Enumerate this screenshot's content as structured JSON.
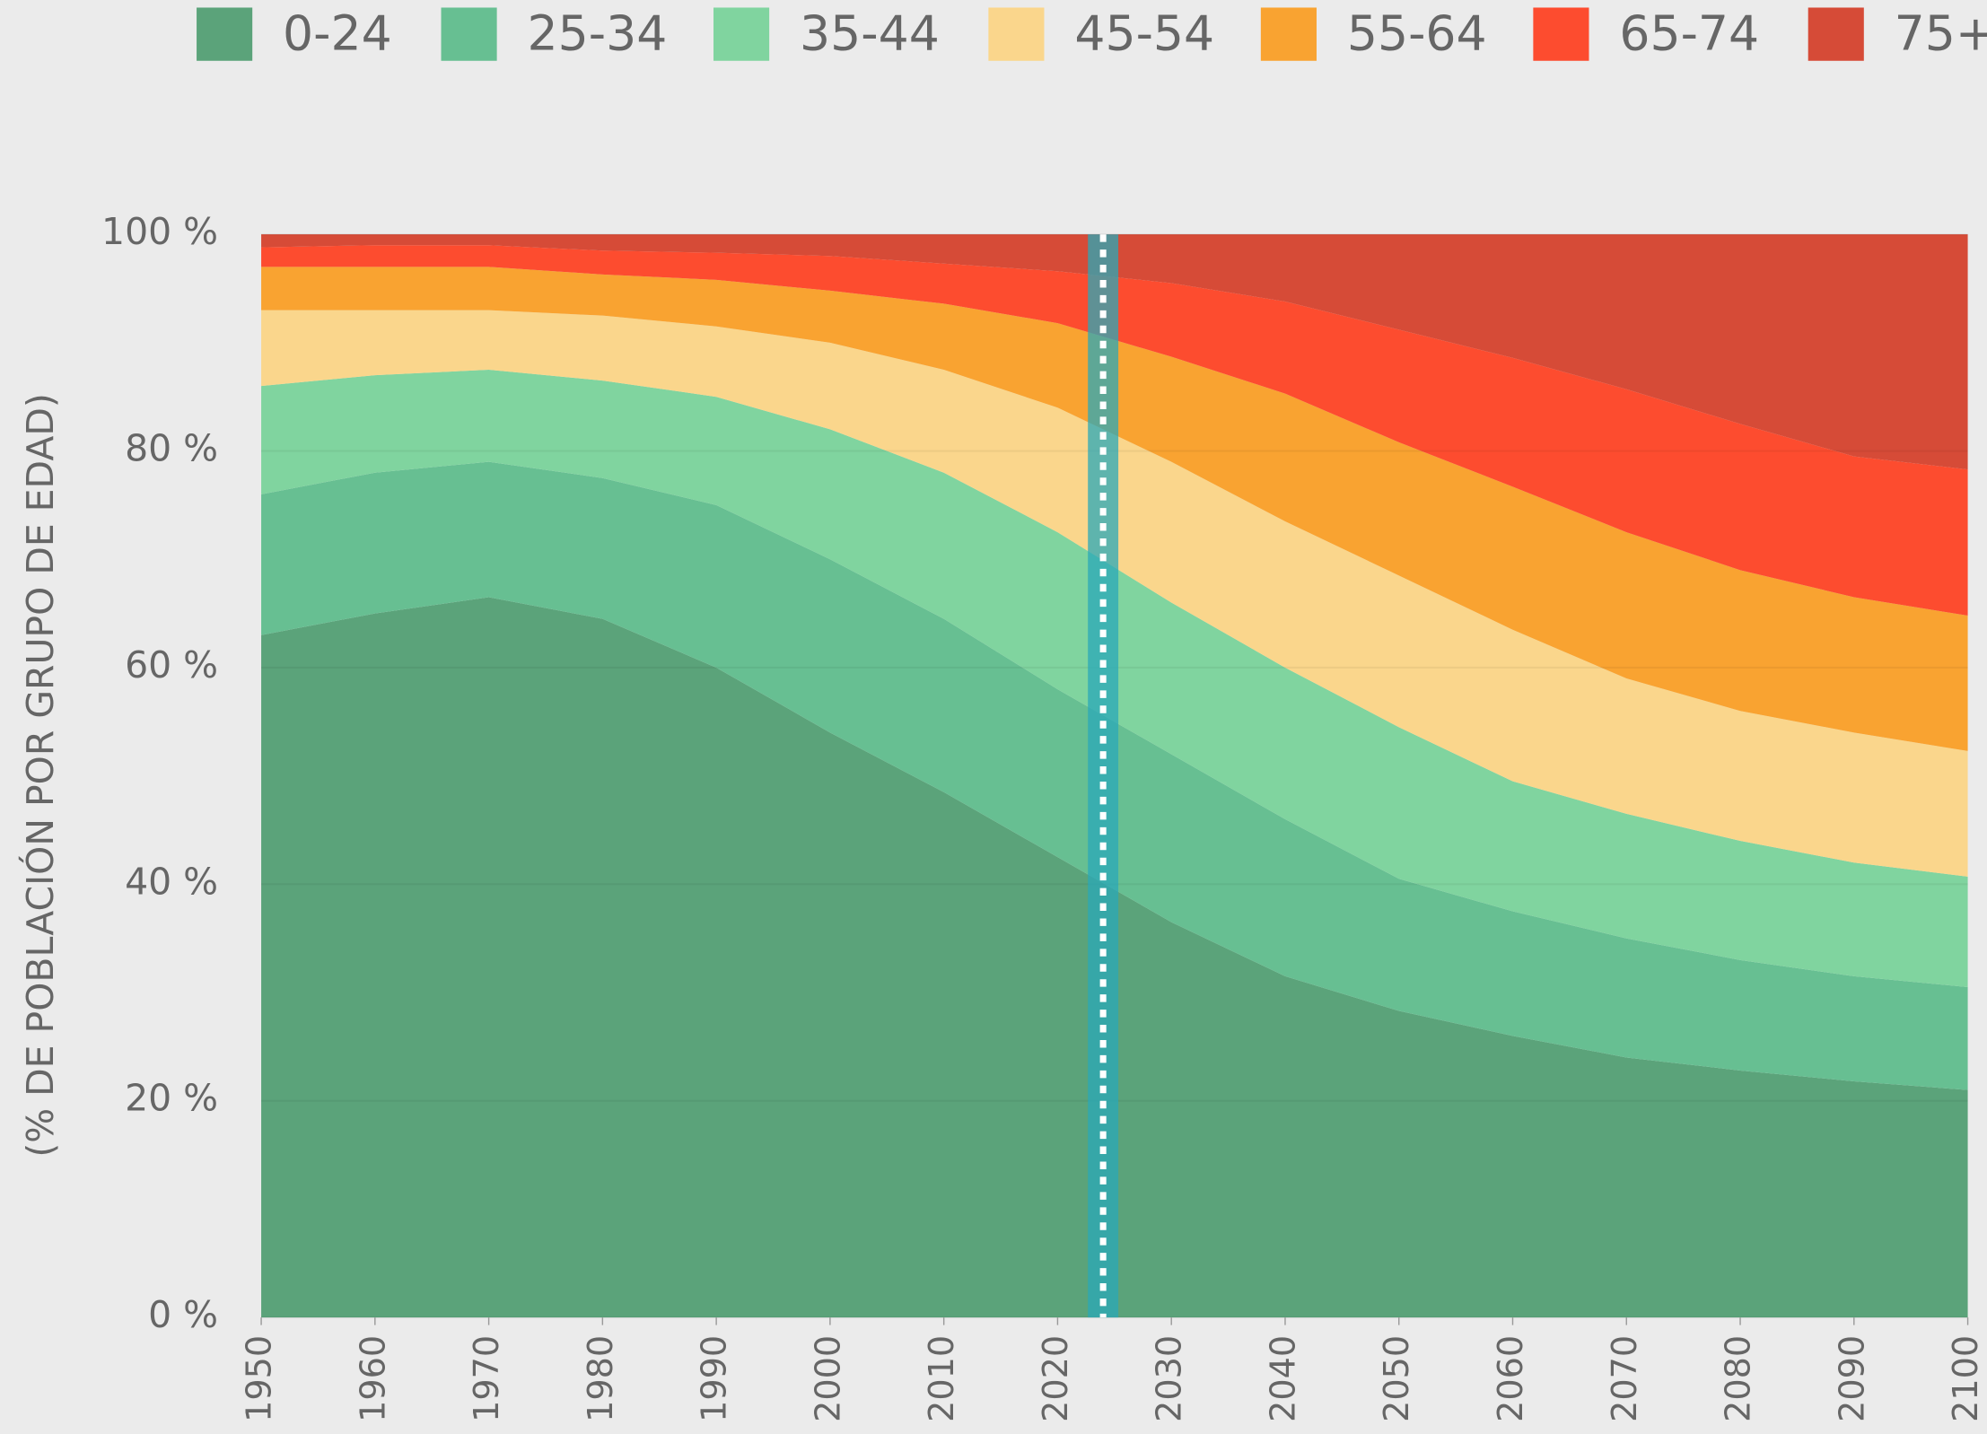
{
  "chart_data": {
    "type": "stacked_area",
    "y_label": "(% DE POBLACIÓN POR GRUPO DE EDAD)",
    "x": [
      1950,
      1960,
      1970,
      1980,
      1990,
      2000,
      2010,
      2020,
      2030,
      2040,
      2050,
      2060,
      2070,
      2080,
      2090,
      2100
    ],
    "series": [
      {
        "name": "0-24",
        "color": "#5ba37a",
        "values": [
          63,
          65,
          66.5,
          64.5,
          60,
          54,
          48.5,
          42.5,
          36.5,
          31.5,
          28.3,
          26,
          24,
          22.8,
          21.8,
          21
        ]
      },
      {
        "name": "25-34",
        "color": "#67bf92",
        "values": [
          13,
          13,
          12.5,
          13,
          15,
          16,
          16,
          15.5,
          15.5,
          14.5,
          12.2,
          11.5,
          11,
          10.2,
          9.7,
          9.5
        ]
      },
      {
        "name": "35-44",
        "color": "#80d49f",
        "values": [
          10,
          9,
          8.5,
          9,
          10,
          12,
          13.5,
          14.5,
          14,
          14,
          14,
          12,
          11.5,
          11,
          10.5,
          10.2
        ]
      },
      {
        "name": "45-54",
        "color": "#fad68c",
        "values": [
          7,
          6,
          5.5,
          6,
          6.5,
          8,
          9.5,
          11.5,
          13,
          13.5,
          14,
          14,
          12.5,
          12,
          12,
          11.6
        ]
      },
      {
        "name": "55-64",
        "color": "#f9a331",
        "values": [
          4,
          4,
          4,
          3.8,
          4.3,
          4.8,
          6.1,
          7.8,
          9.7,
          11.8,
          12.3,
          13.2,
          13.5,
          13,
          12.5,
          12.5
        ]
      },
      {
        "name": "65-74",
        "color": "#fd4c2f",
        "values": [
          1.8,
          2,
          2,
          2.2,
          2.5,
          3.2,
          3.7,
          4.8,
          6.8,
          8.5,
          10.4,
          11.9,
          13.2,
          13.5,
          13,
          13.5
        ]
      },
      {
        "name": "75+",
        "color": "#d64b37",
        "values": [
          1.2,
          1,
          1,
          1.5,
          1.7,
          2,
          2.7,
          3.4,
          4.5,
          6.2,
          8.8,
          11.4,
          14.3,
          17.5,
          20.5,
          21.7
        ]
      }
    ],
    "xlim": [
      1950,
      2100
    ],
    "xticks": [
      1950,
      1960,
      1970,
      1980,
      1990,
      2000,
      2010,
      2020,
      2030,
      2040,
      2050,
      2060,
      2070,
      2080,
      2090,
      2100
    ],
    "ylim": [
      0,
      100
    ],
    "yticks": [
      {
        "value": 0,
        "label": "0 %"
      },
      {
        "value": 20,
        "label": "20 %"
      },
      {
        "value": 40,
        "label": "40 %"
      },
      {
        "value": 60,
        "label": "60 %"
      },
      {
        "value": 80,
        "label": "80 %"
      },
      {
        "value": 100,
        "label": "100 %"
      }
    ],
    "grid": true,
    "legend": "top",
    "highlight_x": 2024
  }
}
